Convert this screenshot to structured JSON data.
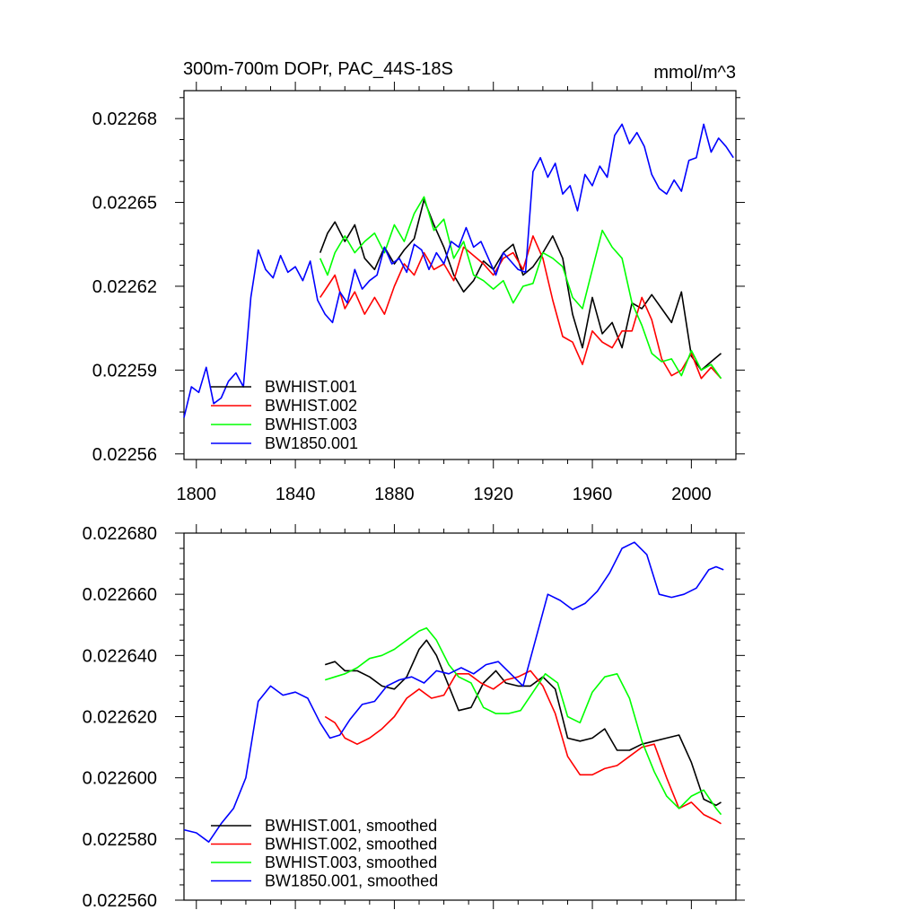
{
  "chart_data": [
    {
      "type": "line",
      "title": "300m-700m DOPr, PAC_44S-18S",
      "units": "mmol/m^3",
      "xlim": [
        1795,
        2018
      ],
      "ylim": [
        0.02256,
        0.022692
      ],
      "xticks": [
        1800,
        1840,
        1880,
        1920,
        1960,
        2000
      ],
      "yticks": [
        {
          "value": 0.022562,
          "label": "0.02256"
        },
        {
          "value": 0.022592,
          "label": "0.02259"
        },
        {
          "value": 0.022622,
          "label": "0.02262"
        },
        {
          "value": 0.022652,
          "label": "0.02265"
        },
        {
          "value": 0.022682,
          "label": "0.02268"
        }
      ],
      "legend_position": "bottom-left",
      "series": [
        {
          "name": "BWHIST.001",
          "color": "#000000",
          "x": [
            1850,
            1853,
            1856,
            1860,
            1864,
            1868,
            1872,
            1876,
            1880,
            1884,
            1888,
            1892,
            1896,
            1900,
            1904,
            1908,
            1912,
            1916,
            1920,
            1924,
            1928,
            1932,
            1936,
            1940,
            1944,
            1948,
            1952,
            1956,
            1960,
            1964,
            1968,
            1972,
            1976,
            1980,
            1984,
            1988,
            1992,
            1996,
            2000,
            2004,
            2008,
            2012
          ],
          "values": [
            0.022634,
            0.022641,
            0.022645,
            0.022638,
            0.022644,
            0.022632,
            0.022628,
            0.022636,
            0.02263,
            0.022635,
            0.022639,
            0.022653,
            0.022644,
            0.022636,
            0.022626,
            0.02262,
            0.022624,
            0.022631,
            0.022628,
            0.022634,
            0.022637,
            0.022626,
            0.022629,
            0.022634,
            0.02264,
            0.022632,
            0.022612,
            0.0226,
            0.022618,
            0.022605,
            0.022609,
            0.0226,
            0.022616,
            0.022614,
            0.022619,
            0.022614,
            0.022609,
            0.02262,
            0.022597,
            0.022592,
            0.022595,
            0.022598
          ]
        },
        {
          "name": "BWHIST.002",
          "color": "#ff0000",
          "x": [
            1850,
            1853,
            1856,
            1860,
            1864,
            1868,
            1872,
            1876,
            1880,
            1884,
            1888,
            1892,
            1896,
            1900,
            1904,
            1908,
            1912,
            1916,
            1920,
            1924,
            1928,
            1932,
            1936,
            1940,
            1944,
            1948,
            1952,
            1956,
            1960,
            1964,
            1968,
            1972,
            1976,
            1980,
            1984,
            1988,
            1992,
            1996,
            2000,
            2004,
            2008,
            2012
          ],
          "values": [
            0.022618,
            0.022622,
            0.022626,
            0.022614,
            0.02262,
            0.022612,
            0.022618,
            0.022612,
            0.022622,
            0.02263,
            0.022626,
            0.022634,
            0.022628,
            0.02263,
            0.022624,
            0.022636,
            0.022633,
            0.02263,
            0.022626,
            0.022632,
            0.022634,
            0.022628,
            0.02264,
            0.022632,
            0.022617,
            0.022604,
            0.022602,
            0.022594,
            0.022606,
            0.022602,
            0.0226,
            0.022606,
            0.022606,
            0.022618,
            0.02261,
            0.022596,
            0.02259,
            0.022592,
            0.022598,
            0.022589,
            0.022593,
            0.022589
          ]
        },
        {
          "name": "BWHIST.003",
          "color": "#00ff00",
          "x": [
            1850,
            1853,
            1856,
            1860,
            1864,
            1868,
            1872,
            1876,
            1880,
            1884,
            1888,
            1892,
            1896,
            1900,
            1904,
            1908,
            1912,
            1916,
            1920,
            1924,
            1928,
            1932,
            1936,
            1940,
            1944,
            1948,
            1952,
            1956,
            1960,
            1964,
            1968,
            1972,
            1976,
            1980,
            1984,
            1988,
            1992,
            1996,
            2000,
            2004,
            2008,
            2012
          ],
          "values": [
            0.022632,
            0.022626,
            0.022634,
            0.02264,
            0.022634,
            0.022638,
            0.022641,
            0.022634,
            0.022644,
            0.022638,
            0.022648,
            0.022654,
            0.022642,
            0.022646,
            0.022632,
            0.022638,
            0.022626,
            0.022624,
            0.022621,
            0.022624,
            0.022616,
            0.022622,
            0.022623,
            0.022634,
            0.022632,
            0.022629,
            0.022618,
            0.022614,
            0.022628,
            0.022642,
            0.022636,
            0.022632,
            0.022616,
            0.022608,
            0.022598,
            0.022595,
            0.022596,
            0.02259,
            0.022599,
            0.022592,
            0.022594,
            0.022589
          ]
        },
        {
          "name": "BW1850.001",
          "color": "#0000ff",
          "x": [
            1795,
            1798,
            1801,
            1804,
            1807,
            1810,
            1813,
            1816,
            1819,
            1822,
            1825,
            1828,
            1831,
            1834,
            1837,
            1840,
            1843,
            1846,
            1849,
            1852,
            1855,
            1858,
            1861,
            1864,
            1867,
            1870,
            1873,
            1876,
            1879,
            1882,
            1885,
            1888,
            1891,
            1894,
            1897,
            1900,
            1903,
            1906,
            1909,
            1912,
            1915,
            1918,
            1921,
            1924,
            1927,
            1930,
            1933,
            1936,
            1939,
            1942,
            1945,
            1948,
            1951,
            1954,
            1957,
            1960,
            1963,
            1966,
            1969,
            1972,
            1975,
            1978,
            1981,
            1984,
            1987,
            1990,
            1993,
            1996,
            1999,
            2002,
            2005,
            2008,
            2011,
            2014,
            2017
          ],
          "values": [
            0.022575,
            0.022586,
            0.022584,
            0.022593,
            0.02258,
            0.022582,
            0.022588,
            0.022591,
            0.022586,
            0.022618,
            0.022635,
            0.022628,
            0.022625,
            0.022633,
            0.022627,
            0.022629,
            0.022624,
            0.022631,
            0.022617,
            0.022612,
            0.022609,
            0.02262,
            0.022616,
            0.022628,
            0.022621,
            0.022624,
            0.022626,
            0.022636,
            0.02263,
            0.022632,
            0.022627,
            0.022637,
            0.022635,
            0.022628,
            0.022634,
            0.02263,
            0.022638,
            0.022636,
            0.022643,
            0.022636,
            0.022638,
            0.022632,
            0.022626,
            0.022634,
            0.022631,
            0.022628,
            0.022627,
            0.022663,
            0.022668,
            0.022661,
            0.022666,
            0.022655,
            0.022658,
            0.022649,
            0.022662,
            0.022658,
            0.022665,
            0.022661,
            0.022676,
            0.02268,
            0.022673,
            0.022677,
            0.022672,
            0.022662,
            0.022657,
            0.022655,
            0.02266,
            0.022656,
            0.022667,
            0.022668,
            0.02268,
            0.02267,
            0.022675,
            0.022672,
            0.022668
          ]
        }
      ]
    },
    {
      "type": "line",
      "title": "",
      "xlim": [
        1795,
        2018
      ],
      "ylim": [
        0.02256,
        0.02268
      ],
      "yticks": [
        {
          "value": 0.02256,
          "label": "0.022560"
        },
        {
          "value": 0.02258,
          "label": "0.022580"
        },
        {
          "value": 0.0226,
          "label": "0.022600"
        },
        {
          "value": 0.02262,
          "label": "0.022620"
        },
        {
          "value": 0.02264,
          "label": "0.022640"
        },
        {
          "value": 0.02266,
          "label": "0.022660"
        },
        {
          "value": 0.02268,
          "label": "0.022680"
        }
      ],
      "legend_position": "bottom-left",
      "series": [
        {
          "name": "BWHIST.001, smoothed",
          "color": "#000000",
          "x": [
            1852,
            1856,
            1860,
            1865,
            1870,
            1875,
            1880,
            1885,
            1890,
            1893,
            1897,
            1902,
            1906,
            1911,
            1916,
            1921,
            1925,
            1930,
            1935,
            1940,
            1945,
            1950,
            1955,
            1960,
            1965,
            1970,
            1975,
            1980,
            1985,
            1990,
            1995,
            2000,
            2005,
            2010,
            2012
          ],
          "values": [
            0.022637,
            0.022638,
            0.022635,
            0.022635,
            0.022633,
            0.02263,
            0.022629,
            0.022633,
            0.022642,
            0.022645,
            0.02264,
            0.02263,
            0.022622,
            0.022623,
            0.022631,
            0.022635,
            0.022631,
            0.02263,
            0.02263,
            0.022633,
            0.022629,
            0.022613,
            0.022612,
            0.022613,
            0.022616,
            0.022609,
            0.022609,
            0.022611,
            0.022612,
            0.022613,
            0.022614,
            0.022605,
            0.022593,
            0.022591,
            0.022592
          ]
        },
        {
          "name": "BWHIST.002, smoothed",
          "color": "#ff0000",
          "x": [
            1852,
            1856,
            1860,
            1865,
            1870,
            1875,
            1880,
            1885,
            1890,
            1895,
            1900,
            1905,
            1910,
            1915,
            1920,
            1925,
            1930,
            1935,
            1940,
            1945,
            1950,
            1955,
            1960,
            1965,
            1970,
            1975,
            1980,
            1985,
            1990,
            1995,
            2000,
            2005,
            2010,
            2012
          ],
          "values": [
            0.02262,
            0.022618,
            0.022613,
            0.022611,
            0.022613,
            0.022616,
            0.02262,
            0.022626,
            0.022629,
            0.022626,
            0.022627,
            0.022634,
            0.022634,
            0.022631,
            0.022629,
            0.022632,
            0.022633,
            0.022635,
            0.02263,
            0.022621,
            0.022607,
            0.022601,
            0.022601,
            0.022603,
            0.022604,
            0.022607,
            0.02261,
            0.022611,
            0.0226,
            0.02259,
            0.022592,
            0.022588,
            0.022586,
            0.022585
          ]
        },
        {
          "name": "BWHIST.003, smoothed",
          "color": "#00ff00",
          "x": [
            1852,
            1856,
            1860,
            1865,
            1870,
            1875,
            1880,
            1885,
            1890,
            1893,
            1897,
            1902,
            1906,
            1911,
            1916,
            1921,
            1926,
            1931,
            1936,
            1941,
            1946,
            1950,
            1955,
            1960,
            1965,
            1970,
            1975,
            1980,
            1985,
            1990,
            1995,
            2000,
            2005,
            2010,
            2012
          ],
          "values": [
            0.022632,
            0.022633,
            0.022634,
            0.022636,
            0.022639,
            0.02264,
            0.022642,
            0.022645,
            0.022648,
            0.022649,
            0.022645,
            0.022637,
            0.022633,
            0.022631,
            0.022623,
            0.022621,
            0.022621,
            0.022622,
            0.022628,
            0.022634,
            0.022631,
            0.02262,
            0.022618,
            0.022628,
            0.022633,
            0.022634,
            0.022626,
            0.022612,
            0.022602,
            0.022594,
            0.02259,
            0.022594,
            0.022596,
            0.02259,
            0.022588
          ]
        },
        {
          "name": "BW1850.001, smoothed",
          "color": "#0000ff",
          "x": [
            1795,
            1800,
            1805,
            1810,
            1815,
            1820,
            1825,
            1830,
            1835,
            1840,
            1845,
            1850,
            1854,
            1858,
            1862,
            1867,
            1872,
            1877,
            1882,
            1887,
            1892,
            1897,
            1902,
            1907,
            1912,
            1917,
            1922,
            1927,
            1932,
            1937,
            1942,
            1947,
            1952,
            1957,
            1962,
            1967,
            1972,
            1977,
            1982,
            1987,
            1992,
            1997,
            2002,
            2007,
            2010,
            2013
          ],
          "values": [
            0.022583,
            0.022582,
            0.022579,
            0.022585,
            0.02259,
            0.0226,
            0.022625,
            0.02263,
            0.022627,
            0.022628,
            0.022626,
            0.022618,
            0.022613,
            0.022614,
            0.022619,
            0.022624,
            0.022625,
            0.02263,
            0.022632,
            0.022633,
            0.022631,
            0.022635,
            0.022634,
            0.022636,
            0.022634,
            0.022637,
            0.022638,
            0.022634,
            0.02263,
            0.022645,
            0.02266,
            0.022658,
            0.022655,
            0.022657,
            0.022661,
            0.022667,
            0.022675,
            0.022677,
            0.022673,
            0.02266,
            0.022659,
            0.02266,
            0.022662,
            0.022668,
            0.022669,
            0.022668
          ]
        }
      ]
    }
  ]
}
